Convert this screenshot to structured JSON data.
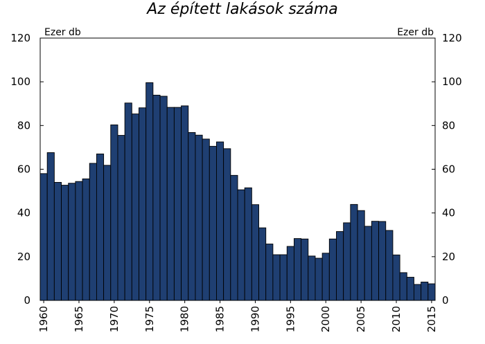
{
  "chart_data": {
    "type": "bar",
    "title": "Az épített lakások száma",
    "unit_left": "Ezer db",
    "unit_right": "Ezer db",
    "xlabel": "",
    "ylabel": "",
    "ylim": [
      0,
      120
    ],
    "y_ticks": [
      "0",
      "20",
      "40",
      "60",
      "80",
      "100",
      "120"
    ],
    "x_tick_labels": [
      "1960",
      "1965",
      "1970",
      "1975",
      "1980",
      "1985",
      "1990",
      "1995",
      "2000",
      "2005",
      "2010",
      "2015"
    ],
    "colors": {
      "bar_fill": "#1f3f72",
      "bar_stroke": "#000000"
    },
    "categories": [
      1960,
      1961,
      1962,
      1963,
      1964,
      1965,
      1966,
      1967,
      1968,
      1969,
      1970,
      1971,
      1972,
      1973,
      1974,
      1975,
      1976,
      1977,
      1978,
      1979,
      1980,
      1981,
      1982,
      1983,
      1984,
      1985,
      1986,
      1987,
      1988,
      1989,
      1990,
      1991,
      1992,
      1993,
      1994,
      1995,
      1996,
      1997,
      1998,
      1999,
      2000,
      2001,
      2002,
      2003,
      2004,
      2005,
      2006,
      2007,
      2008,
      2009,
      2010,
      2011,
      2012,
      2013,
      2014,
      2015
    ],
    "values": [
      58.0,
      67.6,
      54.0,
      52.7,
      53.6,
      54.4,
      55.6,
      62.7,
      67.0,
      61.8,
      80.3,
      75.5,
      90.3,
      85.3,
      88.1,
      99.6,
      93.9,
      93.4,
      88.3,
      88.3,
      89.0,
      76.8,
      75.6,
      73.8,
      70.5,
      72.5,
      69.4,
      57.2,
      50.6,
      51.5,
      43.8,
      33.2,
      25.8,
      20.9,
      20.9,
      24.7,
      28.3,
      28.1,
      20.3,
      19.3,
      21.6,
      28.1,
      31.5,
      35.5,
      43.9,
      41.1,
      33.9,
      36.2,
      36.1,
      32.0,
      20.8,
      12.7,
      10.6,
      7.3,
      8.4,
      7.6
    ],
    "grid": false,
    "legend": "none"
  }
}
